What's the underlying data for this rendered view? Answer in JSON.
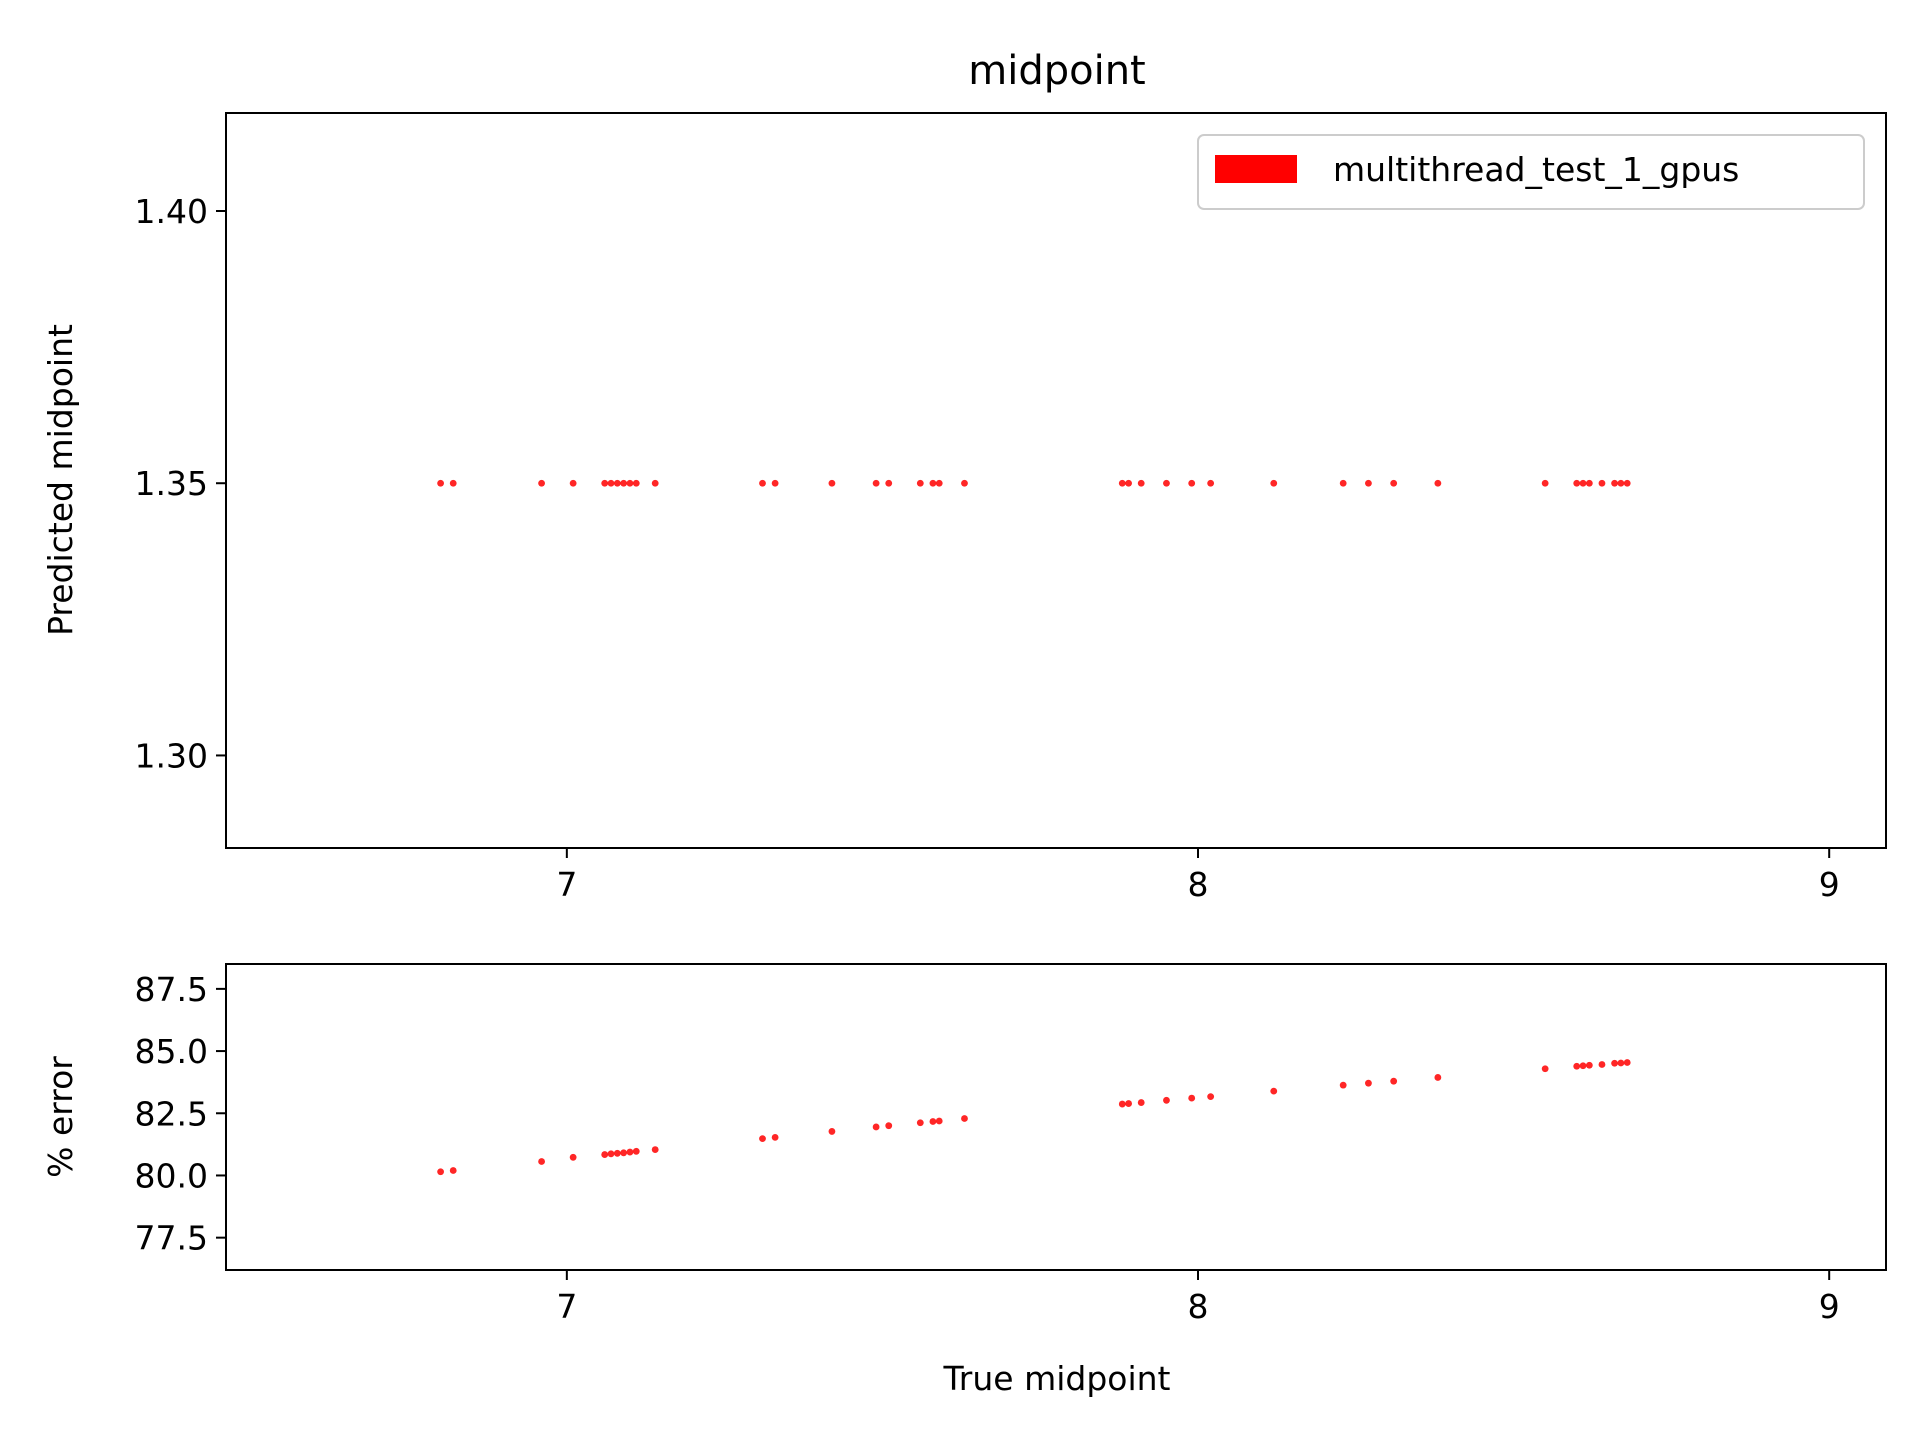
{
  "title": "midpoint",
  "colors": {
    "series": "#ff0000",
    "axis": "#000000"
  },
  "chart_data": [
    {
      "type": "scatter",
      "name": "top",
      "title": "midpoint",
      "xlabel": "",
      "ylabel": "Predicted midpoint",
      "xlim": [
        6.46,
        9.09
      ],
      "ylim": [
        1.283,
        1.418
      ],
      "xticks": [
        7,
        8,
        9
      ],
      "xtick_labels": [
        "7",
        "8",
        "9"
      ],
      "yticks": [
        1.3,
        1.35,
        1.4
      ],
      "ytick_labels": [
        "1.30",
        "1.35",
        "1.40"
      ],
      "grid": false,
      "legend": "top-right",
      "series": [
        {
          "name": "multithread_test_1_gpus",
          "color": "#ff0000",
          "x": [
            6.8,
            6.82,
            6.96,
            7.01,
            7.06,
            7.07,
            7.08,
            7.09,
            7.1,
            7.11,
            7.14,
            7.31,
            7.33,
            7.42,
            7.49,
            7.51,
            7.56,
            7.58,
            7.59,
            7.63,
            7.88,
            7.89,
            7.91,
            7.95,
            7.99,
            8.02,
            8.12,
            8.23,
            8.27,
            8.31,
            8.38,
            8.55,
            8.6,
            8.61,
            8.62,
            8.64,
            8.66,
            8.67,
            8.68
          ],
          "y": [
            1.35,
            1.35,
            1.35,
            1.35,
            1.35,
            1.35,
            1.35,
            1.35,
            1.35,
            1.35,
            1.35,
            1.35,
            1.35,
            1.35,
            1.35,
            1.35,
            1.35,
            1.35,
            1.35,
            1.35,
            1.35,
            1.35,
            1.35,
            1.35,
            1.35,
            1.35,
            1.35,
            1.35,
            1.35,
            1.35,
            1.35,
            1.35,
            1.35,
            1.35,
            1.35,
            1.35,
            1.35,
            1.35,
            1.35
          ]
        }
      ]
    },
    {
      "type": "scatter",
      "name": "bottom",
      "title": "",
      "xlabel": "True midpoint",
      "ylabel": "% error",
      "xlim": [
        6.46,
        9.09
      ],
      "ylim": [
        76.2,
        88.5
      ],
      "xticks": [
        7,
        8,
        9
      ],
      "xtick_labels": [
        "7",
        "8",
        "9"
      ],
      "yticks": [
        77.5,
        80.0,
        82.5,
        85.0,
        87.5
      ],
      "ytick_labels": [
        "77.5",
        "80.0",
        "82.5",
        "85.0",
        "87.5"
      ],
      "grid": false,
      "series": [
        {
          "color": "#ff0000",
          "x": [
            6.8,
            6.82,
            6.96,
            7.01,
            7.06,
            7.07,
            7.08,
            7.09,
            7.1,
            7.11,
            7.14,
            7.31,
            7.33,
            7.42,
            7.49,
            7.51,
            7.56,
            7.58,
            7.59,
            7.63,
            7.88,
            7.89,
            7.91,
            7.95,
            7.99,
            8.02,
            8.12,
            8.23,
            8.27,
            8.31,
            8.38,
            8.55,
            8.6,
            8.61,
            8.62,
            8.64,
            8.66,
            8.67,
            8.68
          ],
          "y": [
            80.15,
            80.2,
            80.56,
            80.73,
            80.84,
            80.87,
            80.89,
            80.91,
            80.94,
            80.97,
            81.04,
            81.48,
            81.53,
            81.77,
            81.95,
            82.0,
            82.12,
            82.17,
            82.19,
            82.29,
            82.87,
            82.89,
            82.93,
            83.02,
            83.11,
            83.17,
            83.39,
            83.63,
            83.71,
            83.79,
            83.94,
            84.29,
            84.39,
            84.41,
            84.43,
            84.46,
            84.51,
            84.52,
            84.54
          ]
        }
      ]
    }
  ]
}
